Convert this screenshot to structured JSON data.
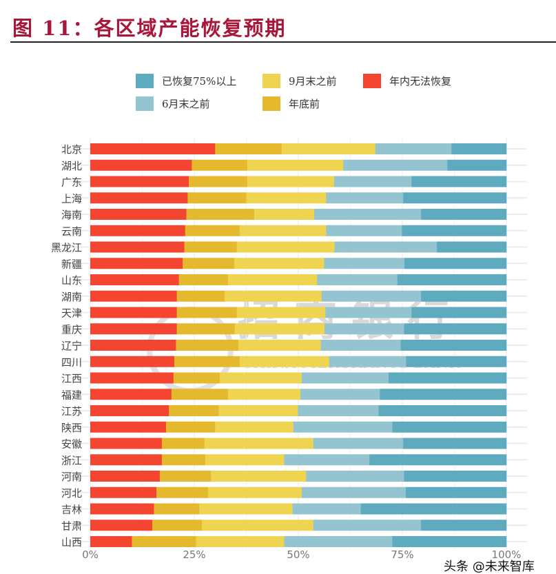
{
  "title": "图 11：各区域产能恢复预期",
  "watermark": {
    "cn": "招商银行",
    "en": "CHINA MERCHANTS BANK"
  },
  "credit": "头条 @未来智库",
  "chart_data": {
    "type": "bar",
    "orientation": "horizontal",
    "stacked": true,
    "title": "",
    "xlabel": "",
    "ylabel": "",
    "xlim": [
      0,
      100
    ],
    "x_ticks": [
      "0%",
      "25%",
      "50%",
      "75%",
      "100%"
    ],
    "grid": true,
    "legend_position": "top",
    "categories": [
      "北京",
      "湖北",
      "广东",
      "上海",
      "海南",
      "云南",
      "黑龙江",
      "新疆",
      "山东",
      "湖南",
      "天津",
      "重庆",
      "辽宁",
      "四川",
      "江西",
      "福建",
      "江苏",
      "陕西",
      "安徽",
      "浙江",
      "河南",
      "河北",
      "吉林",
      "甘肃",
      "山西"
    ],
    "series": [
      {
        "name": "年内无法恢复",
        "color": "#f44530",
        "values": [
          30.0,
          24.4,
          23.7,
          23.4,
          23.1,
          22.8,
          22.6,
          22.2,
          21.3,
          20.8,
          20.8,
          20.8,
          20.6,
          20.2,
          20.0,
          19.5,
          18.9,
          18.2,
          17.2,
          17.2,
          16.7,
          15.9,
          15.3,
          14.9,
          10.0
        ]
      },
      {
        "name": "年底前",
        "color": "#e5b92e",
        "values": [
          16.0,
          13.3,
          14.0,
          14.1,
          16.3,
          13.1,
          12.6,
          12.4,
          11.8,
          11.5,
          14.4,
          13.9,
          15.0,
          15.7,
          11.1,
          13.6,
          12.0,
          11.8,
          10.2,
          10.4,
          12.3,
          12.4,
          10.9,
          11.9,
          15.4
        ]
      },
      {
        "name": "9月末之前",
        "color": "#efd452",
        "values": [
          22.5,
          23.1,
          20.9,
          19.2,
          14.4,
          20.8,
          23.5,
          21.6,
          21.4,
          23.3,
          21.3,
          21.6,
          19.8,
          21.5,
          19.7,
          17.4,
          19.0,
          18.8,
          26.2,
          19.0,
          22.9,
          22.5,
          22.4,
          26.8,
          21.2
        ]
      },
      {
        "name": "6月末之前",
        "color": "#93c4d0",
        "values": [
          18.3,
          25.0,
          18.6,
          18.5,
          25.7,
          18.2,
          24.6,
          19.3,
          19.3,
          23.9,
          20.7,
          19.1,
          19.2,
          18.5,
          20.9,
          19.1,
          19.4,
          23.8,
          21.6,
          20.5,
          23.5,
          25.0,
          16.4,
          25.9,
          26.0
        ]
      },
      {
        "name": "已恢复75%以上",
        "color": "#5eaabf",
        "values": [
          13.2,
          14.2,
          22.8,
          24.8,
          20.5,
          25.1,
          16.7,
          24.5,
          26.2,
          20.5,
          22.8,
          24.6,
          25.4,
          24.1,
          28.3,
          30.4,
          30.7,
          27.4,
          24.8,
          32.9,
          24.6,
          24.2,
          35.0,
          20.5,
          27.4
        ]
      }
    ],
    "legend_order": [
      "已恢复75%以上",
      "9月末之前",
      "年内无法恢复",
      "6月末之前",
      "年底前"
    ]
  }
}
